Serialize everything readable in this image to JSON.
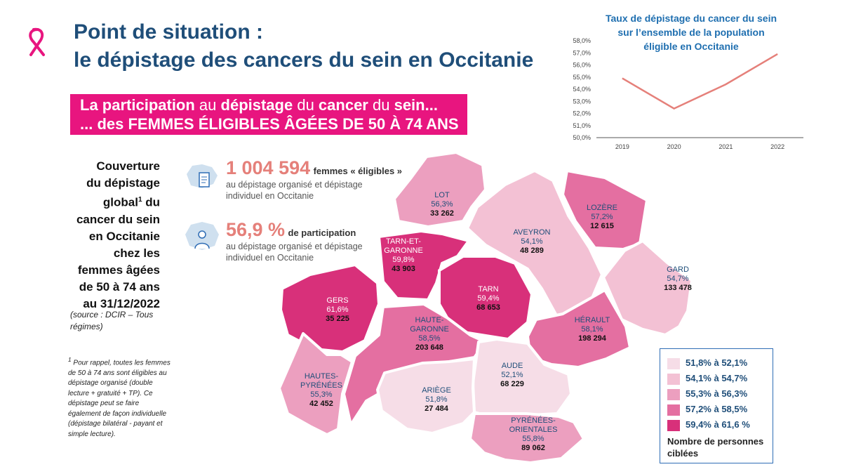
{
  "title_line1": "Point de situation :",
  "title_line2": "le dépistage des cancers du sein en Occitanie",
  "banner": {
    "line1": [
      {
        "t": "La ",
        "b": true
      },
      {
        "t": "participation",
        "b": true
      },
      {
        "t": " au ",
        "b": false
      },
      {
        "t": "dépistage",
        "b": true
      },
      {
        "t": " du ",
        "b": false
      },
      {
        "t": "cancer",
        "b": true
      },
      {
        "t": " du ",
        "b": false
      },
      {
        "t": "sein...",
        "b": true
      }
    ],
    "line2": "... des FEMMES ÉLIGIBLES ÂGÉES DE 50 À 74 ANS"
  },
  "coverage": {
    "l1": "Couverture",
    "l2": "du dépistage",
    "l3": "global",
    "sup": "1",
    "l3b": " du",
    "l4": "cancer du sein",
    "l5": "en Occitanie",
    "l6": "chez les",
    "l7": "femmes âgées",
    "l8": "de 50 à 74 ans",
    "l9": "au 31/12/2022"
  },
  "source": "(source : DCIR – Tous régimes)",
  "footnote_sup": "1",
  "footnote": " Pour rappel, toutes les femmes de 50 à 74 ans sont éligibles au dépistage organisé (double lecture + gratuité + TP). Ce dépistage peut se faire également de façon individuelle (dépistage bilatéral - payant et simple lecture).",
  "stats": [
    {
      "big": "1 004 594",
      "small": "femmes « éligibles »",
      "desc1": "au dépistage organisé et dépistage",
      "desc2": "individuel en Occitanie"
    },
    {
      "big": "56,9 %",
      "small": "de participation",
      "desc1": "au dépistage organisé et dépistage",
      "desc2": "individuel en Occitanie"
    }
  ],
  "chart_title": [
    "Taux de dépistage du cancer du sein",
    "sur l’ensemble de la population",
    "éligible en Occitanie"
  ],
  "chart_data": {
    "type": "line",
    "title": "Taux de dépistage du cancer du sein sur l’ensemble de la population éligible en Occitanie",
    "categories": [
      "2019",
      "2020",
      "2021",
      "2022"
    ],
    "values": [
      54.9,
      52.4,
      54.4,
      56.9
    ],
    "yticks": [
      "50,0%",
      "51,0%",
      "52,0%",
      "53,0%",
      "54,0%",
      "55,0%",
      "56,0%",
      "57,0%",
      "58,0%"
    ],
    "ylim": [
      50,
      58
    ],
    "color": "#e5807a"
  },
  "legend": {
    "items": [
      {
        "label": "51,8% à 52,1%",
        "color": "#f6dde7"
      },
      {
        "label": "54,1% à 54,7%",
        "color": "#f3c1d4"
      },
      {
        "label": "55,3% à 56,3%",
        "color": "#ec9fbf"
      },
      {
        "label": "57,2% à 58,5%",
        "color": "#e46fa1"
      },
      {
        "label": "59,4% à 61,6 %",
        "color": "#d8307a"
      }
    ],
    "footer1": "Nombre de personnes",
    "footer2": "ciblées"
  },
  "departments": [
    {
      "name": "LOT",
      "pct": "56,3%",
      "count": "33 262",
      "color": "#ec9fbf"
    },
    {
      "name": "LOZÈRE",
      "pct": "57,2%",
      "count": "12 615",
      "color": "#e46fa1"
    },
    {
      "name": "AVEYRON",
      "pct": "54,1%",
      "count": "48 289",
      "color": "#f3c1d4"
    },
    {
      "name": "TARN-ET-",
      "name2": "GARONNE",
      "pct": "59,8%",
      "count": "43 903",
      "color": "#d8307a"
    },
    {
      "name": "GARD",
      "pct": "54,7%",
      "count": "133 478",
      "color": "#f3c1d4"
    },
    {
      "name": "TARN",
      "pct": "59,4%",
      "count": "68 653",
      "color": "#d8307a"
    },
    {
      "name": "GERS",
      "pct": "61,6%",
      "count": "35 225",
      "color": "#d8307a"
    },
    {
      "name": "HAUTE-",
      "name2": "GARONNE",
      "pct": "58,5%",
      "count": "203 648",
      "color": "#e46fa1"
    },
    {
      "name": "HÉRAULT",
      "pct": "58,1%",
      "count": "198 294",
      "color": "#e46fa1"
    },
    {
      "name": "AUDE",
      "pct": "52,1%",
      "count": "68 229",
      "color": "#f6dde7"
    },
    {
      "name": "HAUTES-",
      "name2": "PYRÉNÉES",
      "pct": "55,3%",
      "count": "42 452",
      "color": "#ec9fbf"
    },
    {
      "name": "ARIÈGE",
      "pct": "51,8%",
      "count": "27 484",
      "color": "#f6dde7"
    },
    {
      "name": "PYRÉNÉES-",
      "name2": "ORIENTALES",
      "pct": "55,8%",
      "count": "89 062",
      "color": "#ec9fbf"
    }
  ]
}
